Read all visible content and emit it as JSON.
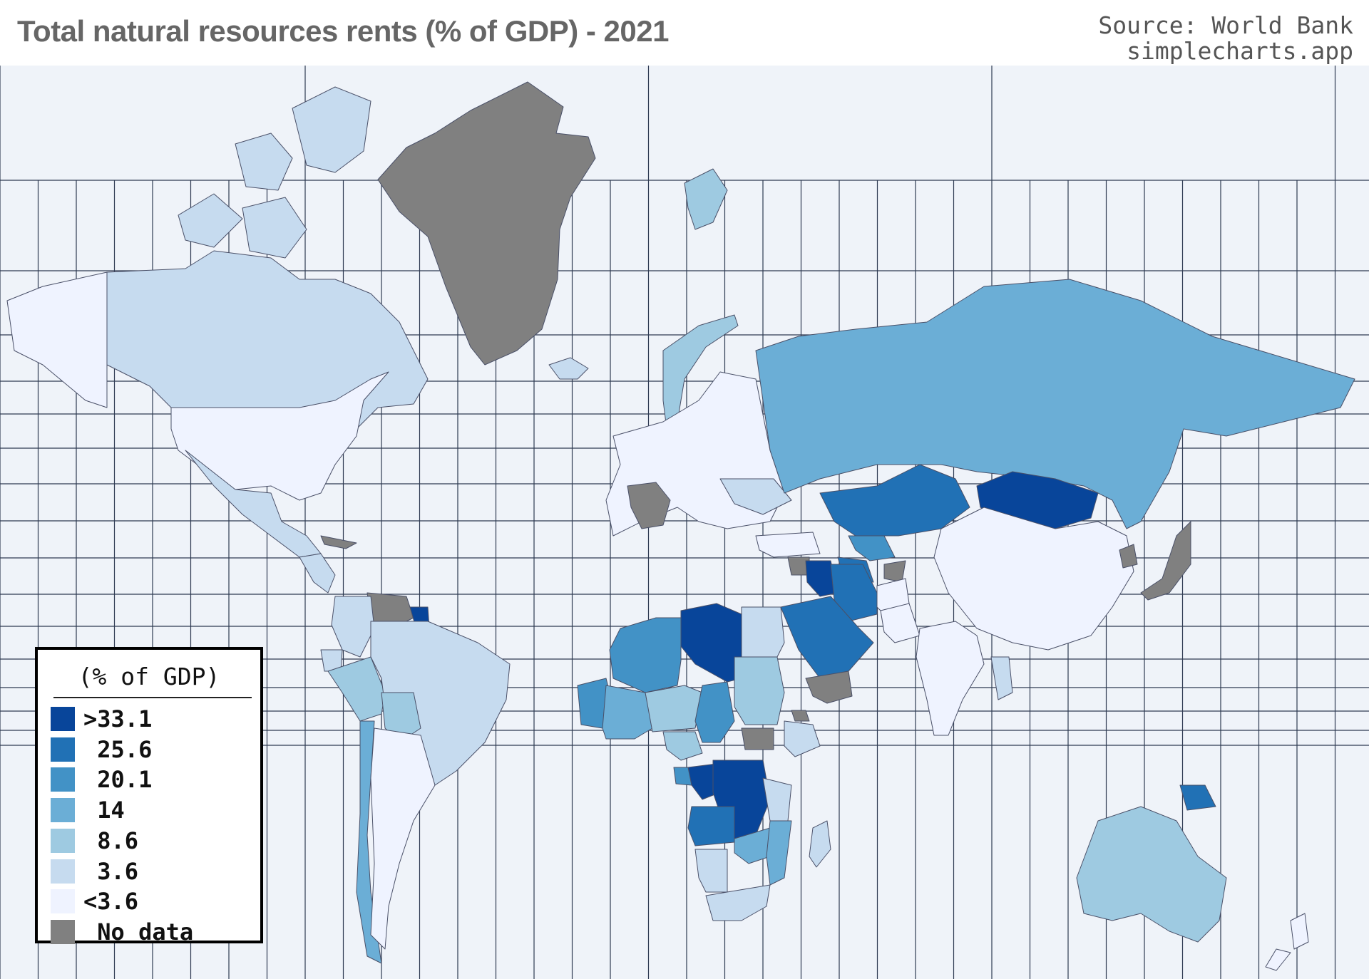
{
  "header": {
    "title": "Total natural resources rents (% of GDP) - 2021",
    "source_line1": "Source: World Bank",
    "source_line2": "simplecharts.app"
  },
  "legend": {
    "title": "(% of GDP)",
    "items": [
      {
        "label": ">33.1",
        "color": "#08459a"
      },
      {
        "label": " 25.6",
        "color": "#2171b5"
      },
      {
        "label": " 20.1",
        "color": "#4292c6"
      },
      {
        "label": " 14",
        "color": "#6baed6"
      },
      {
        "label": " 8.6",
        "color": "#9ecae1"
      },
      {
        "label": " 3.6",
        "color": "#c6dbef"
      },
      {
        "label": "<3.6",
        "color": "#eff3ff"
      },
      {
        "label": " No data",
        "color": "#808080"
      }
    ]
  },
  "chart_data": {
    "type": "choropleth",
    "title": "Total natural resources rents (% of GDP) - 2021",
    "legend_placement": "bottom-left",
    "grid": true,
    "bins": [
      ">33.1",
      "25.6",
      "20.1",
      "14",
      "8.6",
      "3.6",
      "<3.6",
      "No data"
    ],
    "regions": [
      {
        "name": "Libya",
        "bin": ">33.1"
      },
      {
        "name": "Congo",
        "bin": ">33.1"
      },
      {
        "name": "Democratic Republic of the Congo",
        "bin": ">33.1"
      },
      {
        "name": "Mongolia",
        "bin": ">33.1"
      },
      {
        "name": "Iraq",
        "bin": ">33.1"
      },
      {
        "name": "Guyana",
        "bin": ">33.1"
      },
      {
        "name": "Angola",
        "bin": "25.6"
      },
      {
        "name": "Saudi Arabia",
        "bin": "25.6"
      },
      {
        "name": "Iran",
        "bin": "25.6"
      },
      {
        "name": "Kazakhstan",
        "bin": "25.6"
      },
      {
        "name": "Turkmenistan",
        "bin": "25.6"
      },
      {
        "name": "Papua New Guinea",
        "bin": "25.6"
      },
      {
        "name": "Algeria",
        "bin": "20.1"
      },
      {
        "name": "Mauritania",
        "bin": "20.1"
      },
      {
        "name": "Chad",
        "bin": "20.1"
      },
      {
        "name": "Gabon",
        "bin": "20.1"
      },
      {
        "name": "Uzbekistan",
        "bin": "20.1"
      },
      {
        "name": "Russia",
        "bin": "14"
      },
      {
        "name": "Chile",
        "bin": "14"
      },
      {
        "name": "Mali",
        "bin": "14"
      },
      {
        "name": "Zambia",
        "bin": "14"
      },
      {
        "name": "Mozambique",
        "bin": "14"
      },
      {
        "name": "Norway",
        "bin": "8.6"
      },
      {
        "name": "Australia",
        "bin": "8.6"
      },
      {
        "name": "Peru",
        "bin": "8.6"
      },
      {
        "name": "Bolivia",
        "bin": "8.6"
      },
      {
        "name": "Sudan",
        "bin": "8.6"
      },
      {
        "name": "Niger",
        "bin": "8.6"
      },
      {
        "name": "Nigeria",
        "bin": "8.6"
      },
      {
        "name": "Canada",
        "bin": "3.6"
      },
      {
        "name": "Brazil",
        "bin": "3.6"
      },
      {
        "name": "Mexico",
        "bin": "3.6"
      },
      {
        "name": "Egypt",
        "bin": "3.6"
      },
      {
        "name": "Ethiopia",
        "bin": "3.6"
      },
      {
        "name": "Tanzania",
        "bin": "3.6"
      },
      {
        "name": "Namibia",
        "bin": "3.6"
      },
      {
        "name": "South Africa",
        "bin": "3.6"
      },
      {
        "name": "Madagascar",
        "bin": "3.6"
      },
      {
        "name": "Ukraine",
        "bin": "3.6"
      },
      {
        "name": "Colombia",
        "bin": "3.6"
      },
      {
        "name": "Ecuador",
        "bin": "3.6"
      },
      {
        "name": "Myanmar",
        "bin": "3.6"
      },
      {
        "name": "Iceland",
        "bin": "3.6"
      },
      {
        "name": "Svalbard",
        "bin": "8.6"
      },
      {
        "name": "United States",
        "bin": "<3.6"
      },
      {
        "name": "Alaska",
        "bin": "<3.6"
      },
      {
        "name": "Argentina",
        "bin": "<3.6"
      },
      {
        "name": "China",
        "bin": "<3.6"
      },
      {
        "name": "India",
        "bin": "<3.6"
      },
      {
        "name": "Europe",
        "bin": "<3.6"
      },
      {
        "name": "Turkey",
        "bin": "<3.6"
      },
      {
        "name": "Afghanistan",
        "bin": "<3.6"
      },
      {
        "name": "Pakistan",
        "bin": "<3.6"
      },
      {
        "name": "Greenland",
        "bin": "No data"
      },
      {
        "name": "France",
        "bin": "No data"
      },
      {
        "name": "Venezuela",
        "bin": "No data"
      },
      {
        "name": "South Sudan",
        "bin": "No data"
      },
      {
        "name": "Yemen",
        "bin": "No data"
      },
      {
        "name": "Japan",
        "bin": "No data"
      },
      {
        "name": "North Korea",
        "bin": "No data"
      },
      {
        "name": "Syria",
        "bin": "No data"
      },
      {
        "name": "Tajikistan",
        "bin": "No data"
      },
      {
        "name": "Cuba",
        "bin": "No data"
      },
      {
        "name": "Eritrea",
        "bin": "No data"
      }
    ]
  }
}
